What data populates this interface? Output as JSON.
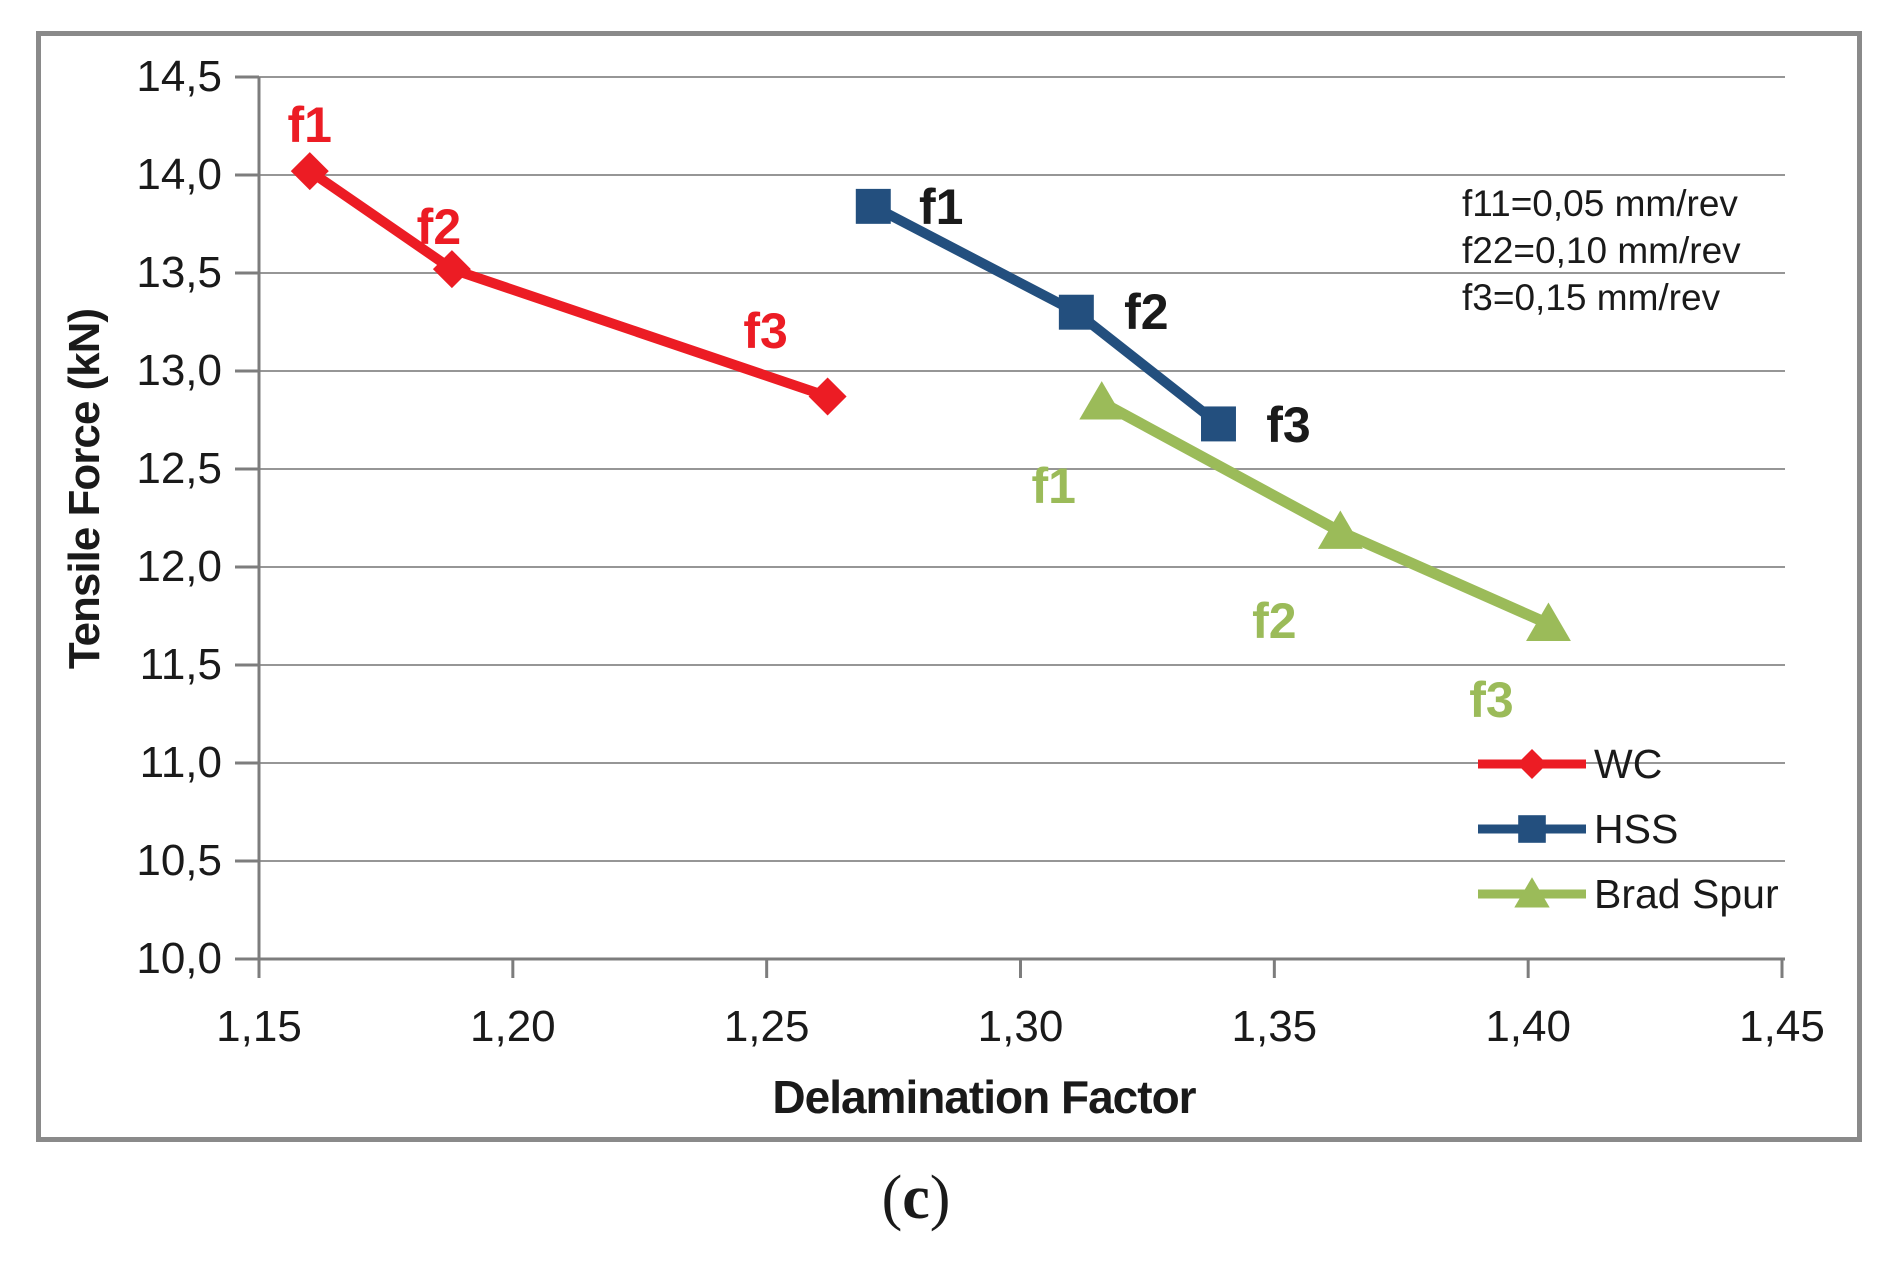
{
  "chart_data": {
    "type": "line",
    "title": "",
    "xlabel": "Delamination Factor",
    "ylabel": "Tensile Force (kN)",
    "xlim": [
      1.15,
      1.45
    ],
    "ylim": [
      10.0,
      14.5
    ],
    "grid": "horizontal-only",
    "legend_position": "inside-right",
    "xticks": {
      "values": [
        1.15,
        1.2,
        1.25,
        1.3,
        1.35,
        1.4,
        1.45
      ],
      "labels": [
        "1,15",
        "1,20",
        "1,25",
        "1,30",
        "1,35",
        "1,40",
        "1,45"
      ]
    },
    "yticks": {
      "values": [
        10.0,
        10.5,
        11.0,
        11.5,
        12.0,
        12.5,
        13.0,
        13.5,
        14.0,
        14.5
      ],
      "labels": [
        "10,0",
        "10,5",
        "11,0",
        "11,5",
        "12,0",
        "12,5",
        "13,0",
        "13,5",
        "14,0",
        "14,5"
      ]
    },
    "annotation_lines": [
      "f11=0,05 mm/rev",
      "f22=0,10 mm/rev",
      "f3=0,15 mm/rev"
    ],
    "series": [
      {
        "name": "WC",
        "color": "#EC1C24",
        "label_color": "#EC1C24",
        "marker": "diamond",
        "points": [
          {
            "x": 1.16,
            "y": 14.02,
            "label": "f1",
            "label_dx": 0,
            "label_dy": -46
          },
          {
            "x": 1.188,
            "y": 13.52,
            "label": "f2",
            "label_dx": -13,
            "label_dy": -42
          },
          {
            "x": 1.262,
            "y": 12.87,
            "label": "f3",
            "label_dx": -62,
            "label_dy": -65
          }
        ]
      },
      {
        "name": "HSS",
        "color": "#234F7E",
        "label_color": "#1a1a1a",
        "marker": "square",
        "points": [
          {
            "x": 1.271,
            "y": 13.84,
            "label": "f1",
            "label_dx": 68,
            "label_dy": 1
          },
          {
            "x": 1.311,
            "y": 13.3,
            "label": "f2",
            "label_dx": 70,
            "label_dy": 0
          },
          {
            "x": 1.339,
            "y": 12.73,
            "label": "f3",
            "label_dx": 70,
            "label_dy": 1
          }
        ]
      },
      {
        "name": "Brad Spur",
        "color": "#9BBB59",
        "label_color": "#9BBB59",
        "marker": "triangle",
        "points": [
          {
            "x": 1.316,
            "y": 12.84,
            "label": "f1",
            "label_dx": -48,
            "label_dy": 84
          },
          {
            "x": 1.363,
            "y": 12.18,
            "label": "f2",
            "label_dx": -66,
            "label_dy": 89
          },
          {
            "x": 1.404,
            "y": 11.71,
            "label": "f3",
            "label_dx": -57,
            "label_dy": 76
          }
        ]
      }
    ]
  },
  "caption": {
    "open": "(",
    "letter": "c",
    "close": ")"
  }
}
